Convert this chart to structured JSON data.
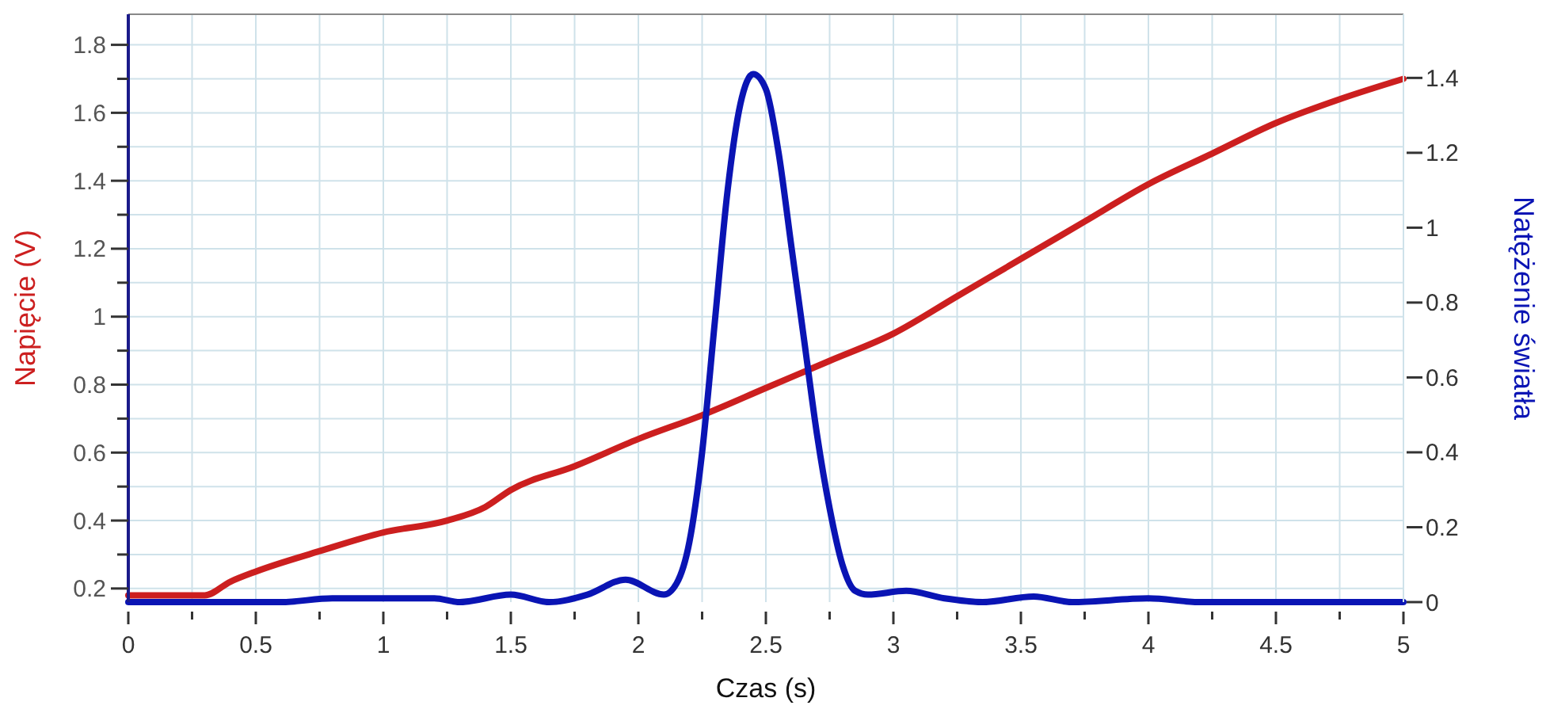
{
  "chart_data": {
    "type": "line",
    "xlabel": "Czas (s)",
    "ylabel": "Napięcie (V)",
    "y2label": "Natężenie światła",
    "xlim": [
      0,
      5
    ],
    "ylim": [
      0.16,
      1.89
    ],
    "y2lim": [
      0,
      1.57
    ],
    "xticks": [
      0,
      {
        "value": 0.25,
        "label": null
      },
      0.5,
      {
        "value": 0.75,
        "label": null
      },
      1,
      {
        "value": 1.25,
        "label": null
      },
      1.5,
      {
        "value": 1.75,
        "label": null
      },
      2,
      {
        "value": 2.25,
        "label": null
      },
      2.5,
      {
        "value": 2.75,
        "label": null
      },
      3,
      {
        "value": 3.25,
        "label": null
      },
      3.5,
      {
        "value": 3.75,
        "label": null
      },
      4,
      {
        "value": 4.25,
        "label": null
      },
      4.5,
      {
        "value": 4.75,
        "label": null
      },
      5
    ],
    "yticks": [
      0.2,
      {
        "value": 0.3,
        "label": null
      },
      0.4,
      {
        "value": 0.5,
        "label": null
      },
      0.6,
      {
        "value": 0.7,
        "label": null
      },
      0.8,
      {
        "value": 0.9,
        "label": null
      },
      1,
      {
        "value": 1.1,
        "label": null
      },
      1.2,
      {
        "value": 1.3,
        "label": null
      },
      1.4,
      {
        "value": 1.5,
        "label": null
      },
      1.6,
      {
        "value": 1.7,
        "label": null
      },
      1.8
    ],
    "y2ticks": [
      0,
      0.2,
      0.4,
      0.6,
      0.8,
      1,
      1.2,
      1.4
    ],
    "grid": true,
    "marker": "none",
    "line_style": "solid",
    "series": [
      {
        "color": "#cc1f1f",
        "x": [
          0,
          0.3,
          0.4,
          0.5,
          0.75,
          1,
          1.25,
          1.4,
          1.5,
          1.75,
          2,
          2.25,
          2.5,
          2.75,
          3,
          3.25,
          3.5,
          3.75,
          4,
          4.25,
          4.5,
          4.75,
          5
        ],
        "values": [
          0.18,
          0.18,
          0.22,
          0.25,
          0.31,
          0.365,
          0.4,
          0.44,
          0.49,
          0.56,
          0.64,
          0.71,
          0.79,
          0.87,
          0.95,
          1.06,
          1.17,
          1.28,
          1.39,
          1.48,
          1.57,
          1.64,
          1.7
        ]
      },
      {
        "color": "#0a14b4",
        "axis": "y2",
        "x": [
          0,
          0.5,
          0.6,
          0.8,
          1.2,
          1.3,
          1.5,
          1.65,
          1.8,
          1.95,
          2.1,
          2.15,
          2.2,
          2.25,
          2.3,
          2.35,
          2.4,
          2.45,
          2.5,
          2.55,
          2.6,
          2.65,
          2.7,
          2.75,
          2.8,
          2.85,
          2.9,
          3.05,
          3.2,
          3.35,
          3.55,
          3.7,
          4,
          4.2,
          5
        ],
        "values": [
          0.0,
          0.0,
          0.0,
          0.01,
          0.01,
          0.0,
          0.02,
          0.0,
          0.02,
          0.06,
          0.02,
          0.05,
          0.16,
          0.4,
          0.75,
          1.1,
          1.33,
          1.41,
          1.37,
          1.2,
          0.95,
          0.7,
          0.45,
          0.25,
          0.1,
          0.03,
          0.02,
          0.03,
          0.01,
          0.0,
          0.015,
          0.0,
          0.01,
          0.0,
          0.0
        ]
      }
    ]
  }
}
